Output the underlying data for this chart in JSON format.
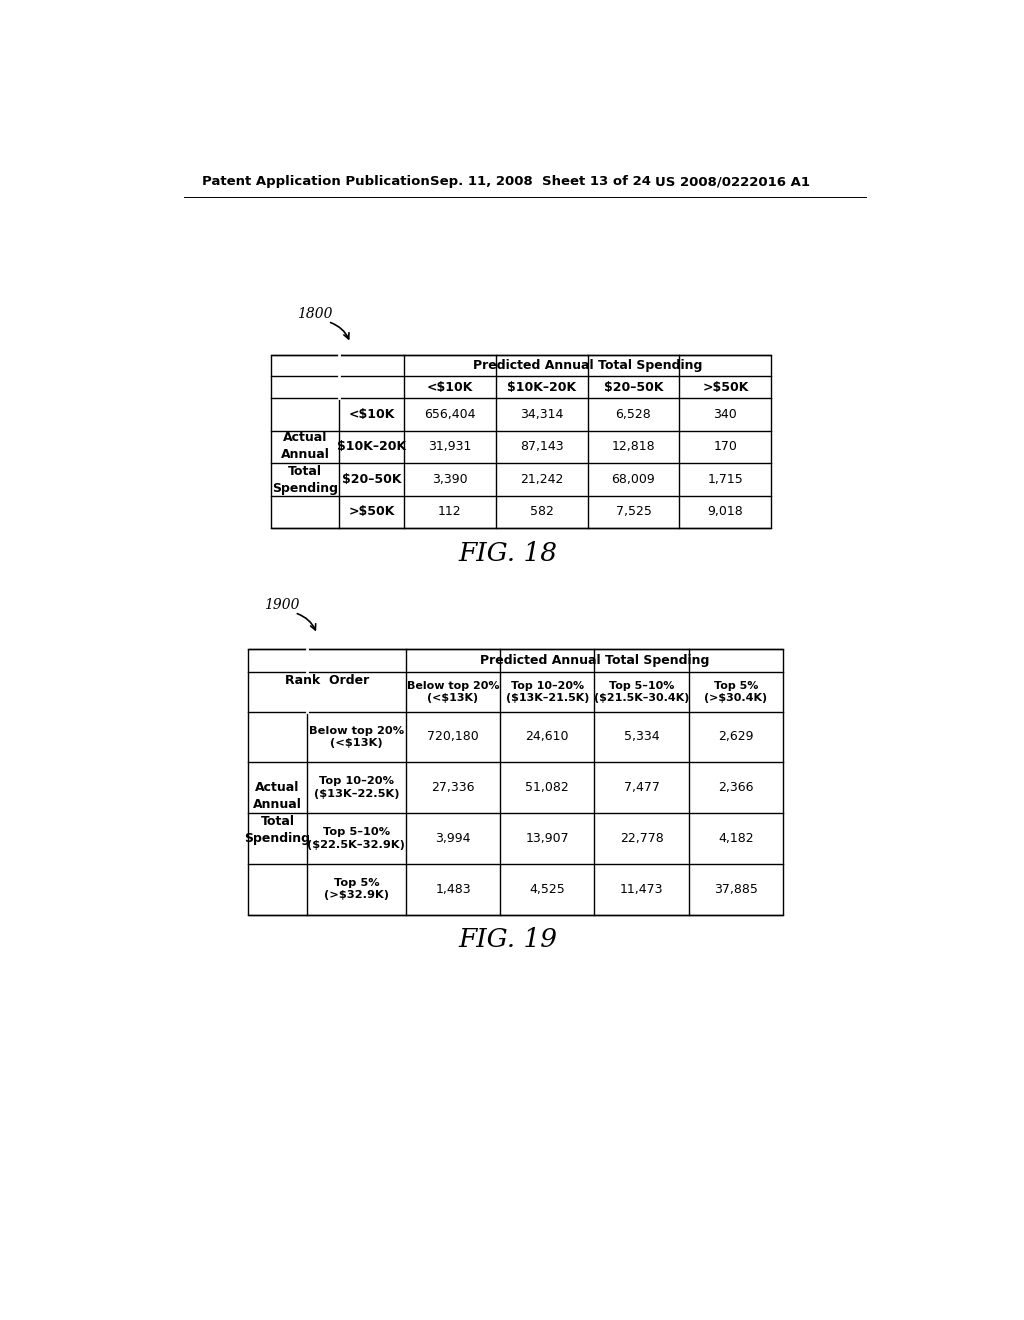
{
  "header_left": "Patent Application Publication",
  "header_mid": "Sep. 11, 2008  Sheet 13 of 24",
  "header_right": "US 2008/0222016 A1",
  "fig18_label": "1800",
  "fig19_label": "1900",
  "fig18_caption": "FIG. 18",
  "fig19_caption": "FIG. 19",
  "table1": {
    "col_header_span": "Predicted Annual Total Spending",
    "col_headers": [
      "<$10K",
      "$10K–20K",
      "$20–50K",
      ">$50K"
    ],
    "row_header_span": "Actual\nAnnual\nTotal\nSpending",
    "row_headers": [
      "<$10K",
      "$10K–20K",
      "$20–50K",
      ">$50K"
    ],
    "data": [
      [
        "656,404",
        "34,314",
        "6,528",
        "340"
      ],
      [
        "31,931",
        "87,143",
        "12,818",
        "170"
      ],
      [
        "3,390",
        "21,242",
        "68,009",
        "1,715"
      ],
      [
        "112",
        "582",
        "7,525",
        "9,018"
      ]
    ]
  },
  "table2": {
    "col_header_span": "Predicted Annual Total Spending",
    "row_header_label": "Rank  Order",
    "col_headers": [
      "Below top 20%\n(<$13K)",
      "Top 10–20%\n($13K–21.5K)",
      "Top 5–10%\n($21.5K–30.4K)",
      "Top 5%\n(>$30.4K)"
    ],
    "row_header_span": "Actual\nAnnual\nTotal\nSpending",
    "row_headers": [
      "Below top 20%\n(<$13K)",
      "Top 10–20%\n($13K–22.5K)",
      "Top 5–10%\n($22.5K–32.9K)",
      "Top 5%\n(>$32.9K)"
    ],
    "data": [
      [
        "720,180",
        "24,610",
        "5,334",
        "2,629"
      ],
      [
        "27,336",
        "51,082",
        "7,477",
        "2,366"
      ],
      [
        "3,994",
        "13,907",
        "22,778",
        "4,182"
      ],
      [
        "1,483",
        "4,525",
        "11,473",
        "37,885"
      ]
    ]
  },
  "bg_color": "#ffffff",
  "text_color": "#000000",
  "line_color": "#000000"
}
